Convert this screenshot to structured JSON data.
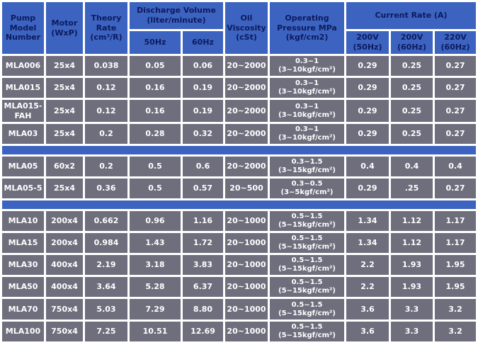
{
  "colors": {
    "header_bg": "#3b63bf",
    "header_text": "#0e1a5e",
    "row_bg": "#6e6e7d",
    "row_text": "#ffffff",
    "gridline": "#ffffff",
    "separator_bg": "#3b63bf"
  },
  "chart_data": {
    "type": "table",
    "header": {
      "pump_model": "Pump\nModel\nNumber",
      "motor": "Motor\n(WxP)",
      "theory_rate": "Theory\nRate\n(cm³/R)",
      "discharge_volume": "Discharge Volume\n(liter/minute)",
      "discharge_50hz": "50Hz",
      "discharge_60hz": "60Hz",
      "oil_viscosity": "Oil\nViscosity\n(cSt)",
      "operating_pressure": "Operating\nPressure MPa\n(kgf/cm2)",
      "current_rate": "Current Rate (A)",
      "current_200v_50hz": "200V\n(50Hz)",
      "current_200v_60hz": "200V\n(60Hz)",
      "current_220v_60hz": "220V\n(60Hz)"
    },
    "column_keys": [
      "pump-model",
      "motor",
      "theory-rate",
      "discharge-50hz",
      "discharge-60hz",
      "oil-viscosity",
      "operating-pressure",
      "current-200v-50hz",
      "current-200v-60hz",
      "current-220v-60hz"
    ],
    "sections": [
      {
        "rows": [
          [
            "MLA006",
            "25x4",
            "0.038",
            "0.05",
            "0.06",
            "20~2000",
            "0.3~1\n(3~10kgf/cm²)",
            "0.29",
            "0.25",
            "0.27"
          ],
          [
            "MLA015",
            "25x4",
            "0.12",
            "0.16",
            "0.19",
            "20~2000",
            "0.3~1\n(3~10kgf/cm²)",
            "0.29",
            "0.25",
            "0.27"
          ],
          [
            "MLA015-FAH",
            "25x4",
            "0.12",
            "0.16",
            "0.19",
            "20~2000",
            "0.3~1\n(3~10kgf/cm²)",
            "0.29",
            "0.25",
            "0.27"
          ],
          [
            "MLA03",
            "25x4",
            "0.2",
            "0.28",
            "0.32",
            "20~2000",
            "0.3~1\n(3~10kgf/cm²)",
            "0.29",
            "0.25",
            "0.27"
          ]
        ]
      },
      {
        "rows": [
          [
            "MLA05",
            "60x2",
            "0.2",
            "0.5",
            "0.6",
            "20~2000",
            "0.3~1.5\n(3~15kgf/cm²)",
            "0.4",
            "0.4",
            "0.4"
          ],
          [
            "MLA05-5",
            "25x4",
            "0.36",
            "0.5",
            "0.57",
            "20~500",
            "0.3~0.5\n(3~5kgf/cm²)",
            "0.29",
            ".25",
            "0.27"
          ]
        ]
      },
      {
        "rows": [
          [
            "MLA10",
            "200x4",
            "0.662",
            "0.96",
            "1.16",
            "20~1000",
            "0.5~1.5\n(5~15kgf/cm²)",
            "1.34",
            "1.12",
            "1.17"
          ],
          [
            "MLA15",
            "200x4",
            "0.984",
            "1.43",
            "1.72",
            "20~1000",
            "0.5~1.5\n(5~15kgf/cm²)",
            "1.34",
            "1.12",
            "1.17"
          ],
          [
            "MLA30",
            "400x4",
            "2.19",
            "3.18",
            "3.83",
            "20~1000",
            "0.5~1.5\n(5~15kgf/cm²)",
            "2.2",
            "1.93",
            "1.95"
          ],
          [
            "MLA50",
            "400x4",
            "3.64",
            "5.28",
            "6.37",
            "20~1000",
            "0.5~1.5\n(5~15kgf/cm²)",
            "2.2",
            "1.93",
            "1.95"
          ],
          [
            "MLA70",
            "750x4",
            "5.03",
            "7.29",
            "8.80",
            "20~1000",
            "0.5~1.5\n(5~15kgf/cm²)",
            "3.6",
            "3.3",
            "3.2"
          ],
          [
            "MLA100",
            "750x4",
            "7.25",
            "10.51",
            "12.69",
            "20~1000",
            "0.5~1.5\n(5~15kgf/cm²)",
            "3.6",
            "3.3",
            "3.2"
          ]
        ]
      }
    ]
  }
}
